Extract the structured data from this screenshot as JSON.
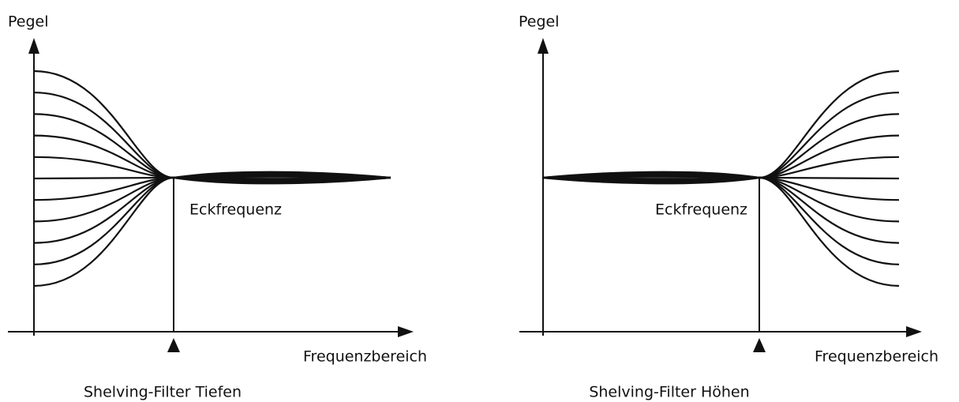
{
  "panels": [
    {
      "y_label": "Pegel",
      "corner_label": "Eckfrequenz",
      "x_label": "Frequenzbereich",
      "caption": "Shelving-Filter Tiefen"
    },
    {
      "y_label": "Pegel",
      "corner_label": "Eckfrequenz",
      "x_label": "Frequenzbereich",
      "caption": "Shelving-Filter Höhen"
    }
  ]
}
